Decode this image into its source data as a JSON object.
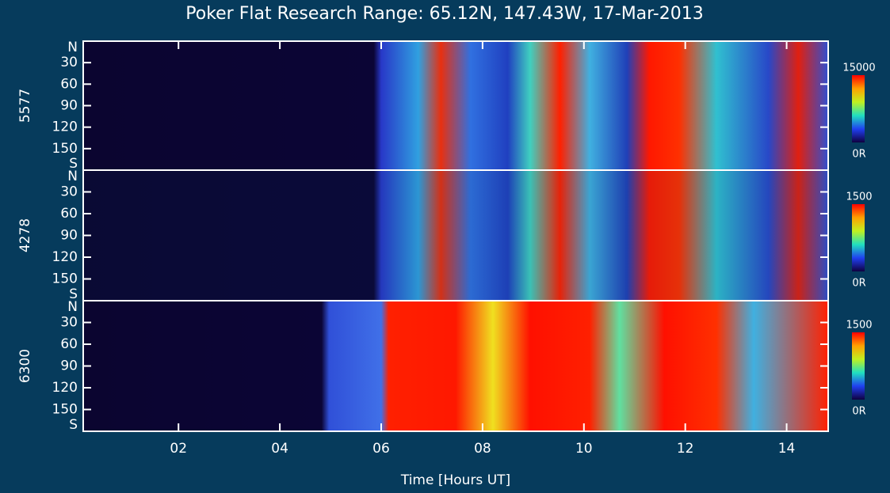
{
  "title": "Poker Flat Research Range: 65.12N, 147.43W, 17-Mar-2013",
  "chart_data": [
    {
      "type": "heatmap",
      "ylabel": "5577",
      "xlim": [
        0.12,
        14.82
      ],
      "ylim": [
        0,
        180
      ],
      "yticks": [
        {
          "value": 0,
          "label": "N"
        },
        30,
        60,
        90,
        120,
        150,
        {
          "value": 180,
          "label": "S"
        }
      ],
      "colorbar": {
        "lim": [
          0,
          15000
        ],
        "ticks": [
          {
            "value": 0,
            "label": "0R"
          },
          15000
        ]
      }
    },
    {
      "type": "heatmap",
      "ylabel": "4278",
      "xlim": [
        0.12,
        14.82
      ],
      "ylim": [
        0,
        180
      ],
      "yticks": [
        {
          "value": 0,
          "label": "N"
        },
        30,
        60,
        90,
        120,
        150,
        {
          "value": 180,
          "label": "S"
        }
      ],
      "colorbar": {
        "lim": [
          0,
          1500
        ],
        "ticks": [
          {
            "value": 0,
            "label": "0R"
          },
          1500
        ]
      }
    },
    {
      "type": "heatmap",
      "ylabel": "6300",
      "xlim": [
        0.12,
        14.82
      ],
      "ylim": [
        0,
        180
      ],
      "yticks": [
        {
          "value": 0,
          "label": "N"
        },
        30,
        60,
        90,
        120,
        150,
        {
          "value": 180,
          "label": "S"
        }
      ],
      "colorbar": {
        "lim": [
          0,
          1500
        ],
        "ticks": [
          {
            "value": 0,
            "label": "0R"
          },
          1500
        ]
      },
      "xlabel": "Time [Hours UT]",
      "xticks": [
        {
          "value": 2,
          "label": "02"
        },
        {
          "value": 4,
          "label": "04"
        },
        {
          "value": 6,
          "label": "06"
        },
        {
          "value": 8,
          "label": "08"
        },
        {
          "value": 10,
          "label": "10"
        },
        {
          "value": 12,
          "label": "12"
        },
        {
          "value": 14,
          "label": "14"
        }
      ]
    }
  ]
}
